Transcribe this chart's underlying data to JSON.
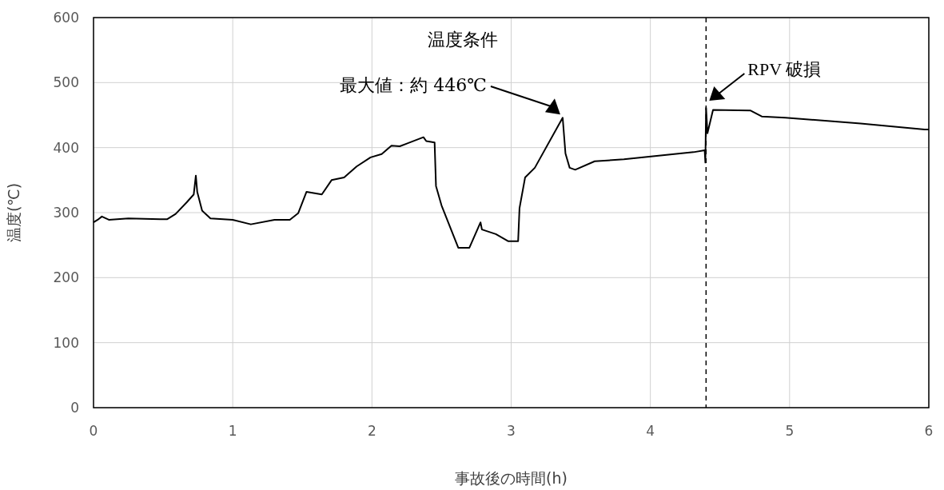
{
  "chart_data": {
    "type": "line",
    "xlabel": "事故後の時間(h)",
    "ylabel": "温度(℃)",
    "x": [
      0,
      0.03,
      0.06,
      0.11,
      0.25,
      0.48,
      0.53,
      0.59,
      0.67,
      0.72,
      0.735,
      0.745,
      0.78,
      0.84,
      1.0,
      1.13,
      1.3,
      1.41,
      1.47,
      1.53,
      1.64,
      1.71,
      1.8,
      1.89,
      1.99,
      2.07,
      2.14,
      2.2,
      2.37,
      2.39,
      2.45,
      2.46,
      2.5,
      2.62,
      2.7,
      2.78,
      2.79,
      2.89,
      2.98,
      3.05,
      3.06,
      3.1,
      3.17,
      3.37,
      3.39,
      3.42,
      3.46,
      3.6,
      3.81,
      4.31,
      4.39,
      4.395,
      4.4,
      4.41,
      4.45,
      4.72,
      4.8,
      4.97,
      5.51,
      5.97,
      6.0
    ],
    "series": [
      {
        "color": "#000000",
        "values": [
          285,
          289,
          294,
          289,
          291,
          290,
          290,
          298,
          316,
          328,
          357,
          332,
          303,
          291,
          289,
          282,
          289,
          289,
          299,
          332,
          328,
          350,
          354,
          371,
          385,
          390,
          403,
          402,
          416,
          410,
          408,
          341,
          311,
          246,
          246,
          285,
          274,
          267,
          256,
          256,
          307,
          354,
          369,
          446,
          391,
          369,
          366,
          379,
          382,
          393,
          396,
          377,
          461,
          422,
          458,
          457,
          448,
          446,
          437,
          428,
          428
        ]
      }
    ],
    "xlim": [
      0,
      6
    ],
    "xticks": [
      0,
      1,
      2,
      3,
      4,
      5,
      6
    ],
    "ylim": [
      0,
      600
    ],
    "yticks": [
      0,
      100,
      200,
      300,
      400,
      500,
      600
    ],
    "grid": true,
    "marker": "none",
    "line_style": "solid",
    "ref_lines": [
      {
        "axis": "x",
        "value": 4.4,
        "label": "RPV 破損",
        "color": "#000000",
        "line_style": "dashed"
      }
    ],
    "annotations": [
      "温度条件",
      "最大値：約 446℃"
    ]
  }
}
